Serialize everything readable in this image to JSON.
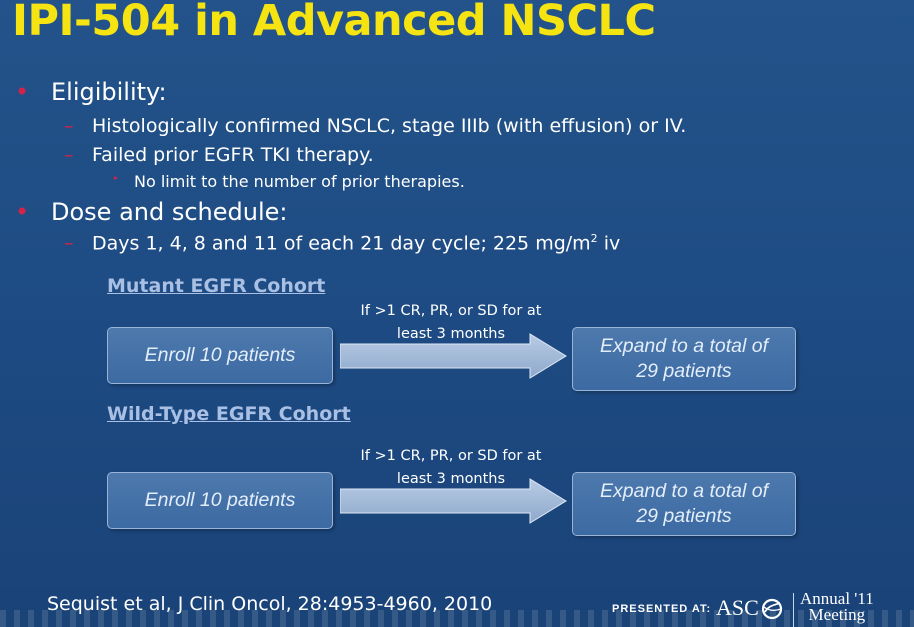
{
  "title": "IPI-504 in Advanced NSCLC",
  "bullet_marks": {
    "l1": "•",
    "l2": "–",
    "l3": "•"
  },
  "bullets": {
    "eligibility": "Eligibility:",
    "histology": "Histologically confirmed NSCLC, stage IIIb (with effusion) or IV.",
    "failed_tki": "Failed prior EGFR TKI therapy.",
    "no_limit": "No limit to the number of prior therapies.",
    "dose": "Dose and schedule:",
    "days_prefix": "Days 1, 4, 8 and 11 of each 21 day cycle; 225 mg/m",
    "days_sup": "2",
    "days_suffix": " iv"
  },
  "cohorts": [
    {
      "name": "Mutant EGFR Cohort",
      "start": "Enroll 10 patients",
      "condition_line1": "If >1 CR, PR, or SD for at",
      "condition_line2": "least 3 months",
      "expand_line1": "Expand to a total of",
      "expand_line2": "29 patients"
    },
    {
      "name": "Wild-Type EGFR Cohort",
      "start": "Enroll 10 patients",
      "condition_line1": "If >1 CR, PR, or SD for at",
      "condition_line2": "least 3 months",
      "expand_line1": "Expand to a total of",
      "expand_line2": "29 patients"
    }
  ],
  "footer": {
    "citation": "Sequist et al, J Clin Oncol, 28:4953-4960, 2010",
    "presented_at": "PRESENTED AT:",
    "asco": "ASC",
    "annual_line1": "Annual '11",
    "annual_line2": "Meeting"
  },
  "colors": {
    "title": "#f6e312",
    "bullet": "#d4224a",
    "cohort_heading": "#a9c0e4",
    "background": "#1d4a82"
  }
}
